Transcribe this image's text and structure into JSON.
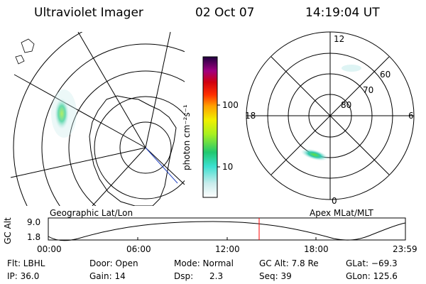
{
  "header": {
    "instrument": "Ultraviolet Imager",
    "date": "02 Oct 07",
    "time": "14:19:04 UT"
  },
  "colorbar": {
    "unit_label": "photon cm⁻²s⁻¹",
    "ticks": [
      "100",
      "10"
    ]
  },
  "left_map": {
    "caption": "Geographic Lat/Lon"
  },
  "right_map": {
    "caption": "Apex MLat/MLT",
    "mlt_labels": {
      "top": "12",
      "left": "18",
      "right": "6",
      "bottom": "0"
    },
    "mlat_labels": [
      "60",
      "70",
      "80"
    ]
  },
  "timeline": {
    "ylabel": "GC Alt",
    "yticks": [
      "9.0",
      "1.8"
    ],
    "xticks": [
      "00:00",
      "06:00",
      "12:00",
      "18:00",
      "23:59"
    ],
    "marker_color": "#ff0000"
  },
  "info": {
    "filter": "Flt: LBHL",
    "ip": "IP: 36.0",
    "door": "Door: Open",
    "gain": "Gain: 14",
    "mode": "Mode: Normal",
    "dsp": "Dsp:      2.3",
    "gc_alt": "GC Alt: 7.8 Re",
    "seq": "Seq: 39",
    "glat": "GLat: −69.3",
    "glon": "GLon: 125.6"
  }
}
